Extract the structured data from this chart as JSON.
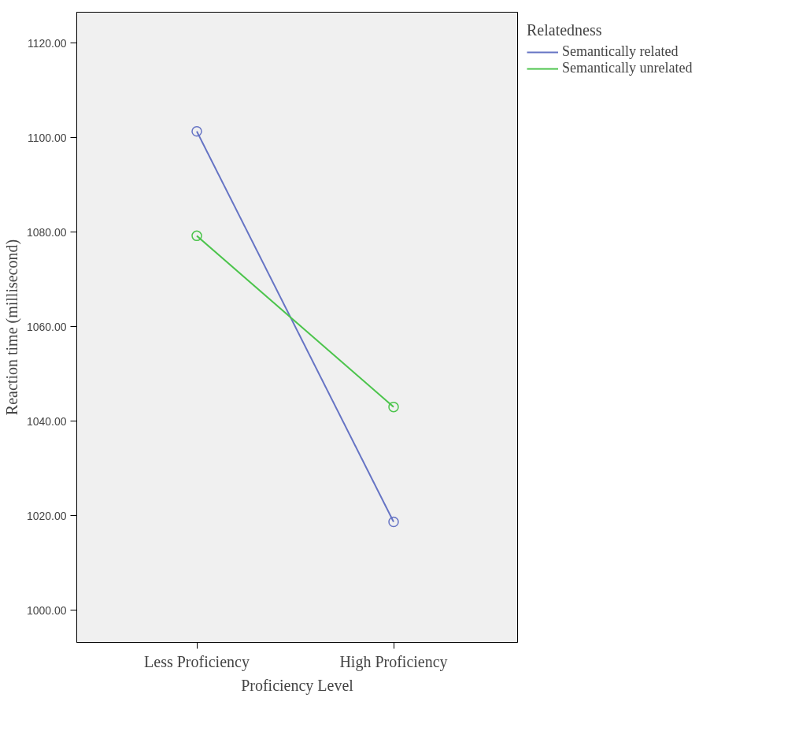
{
  "chart_data": {
    "type": "line",
    "xlabel": "Proficiency Level",
    "ylabel": "Reaction time (millisecond)",
    "legend_title": "Relatedness",
    "categories": [
      "Less Proficiency",
      "High Proficiency"
    ],
    "series": [
      {
        "name": "Semantically related",
        "color": "#6674c4",
        "values": [
          1101.3,
          1018.7
        ]
      },
      {
        "name": "Semantically unrelated",
        "color": "#4cc44c",
        "values": [
          1079.2,
          1043.0
        ]
      }
    ],
    "ylim": [
      993.2,
      1126.5
    ],
    "yticks": [
      {
        "value": 1000,
        "label": "1000.00"
      },
      {
        "value": 1020,
        "label": "1020.00"
      },
      {
        "value": 1040,
        "label": "1040.00"
      },
      {
        "value": 1060,
        "label": "1060.00"
      },
      {
        "value": 1080,
        "label": "1080.00"
      },
      {
        "value": 1100,
        "label": "1100.00"
      },
      {
        "value": 1120,
        "label": "1120.00"
      }
    ],
    "marker": "circle",
    "line_style": "solid",
    "grid": false,
    "legend": "top right"
  }
}
